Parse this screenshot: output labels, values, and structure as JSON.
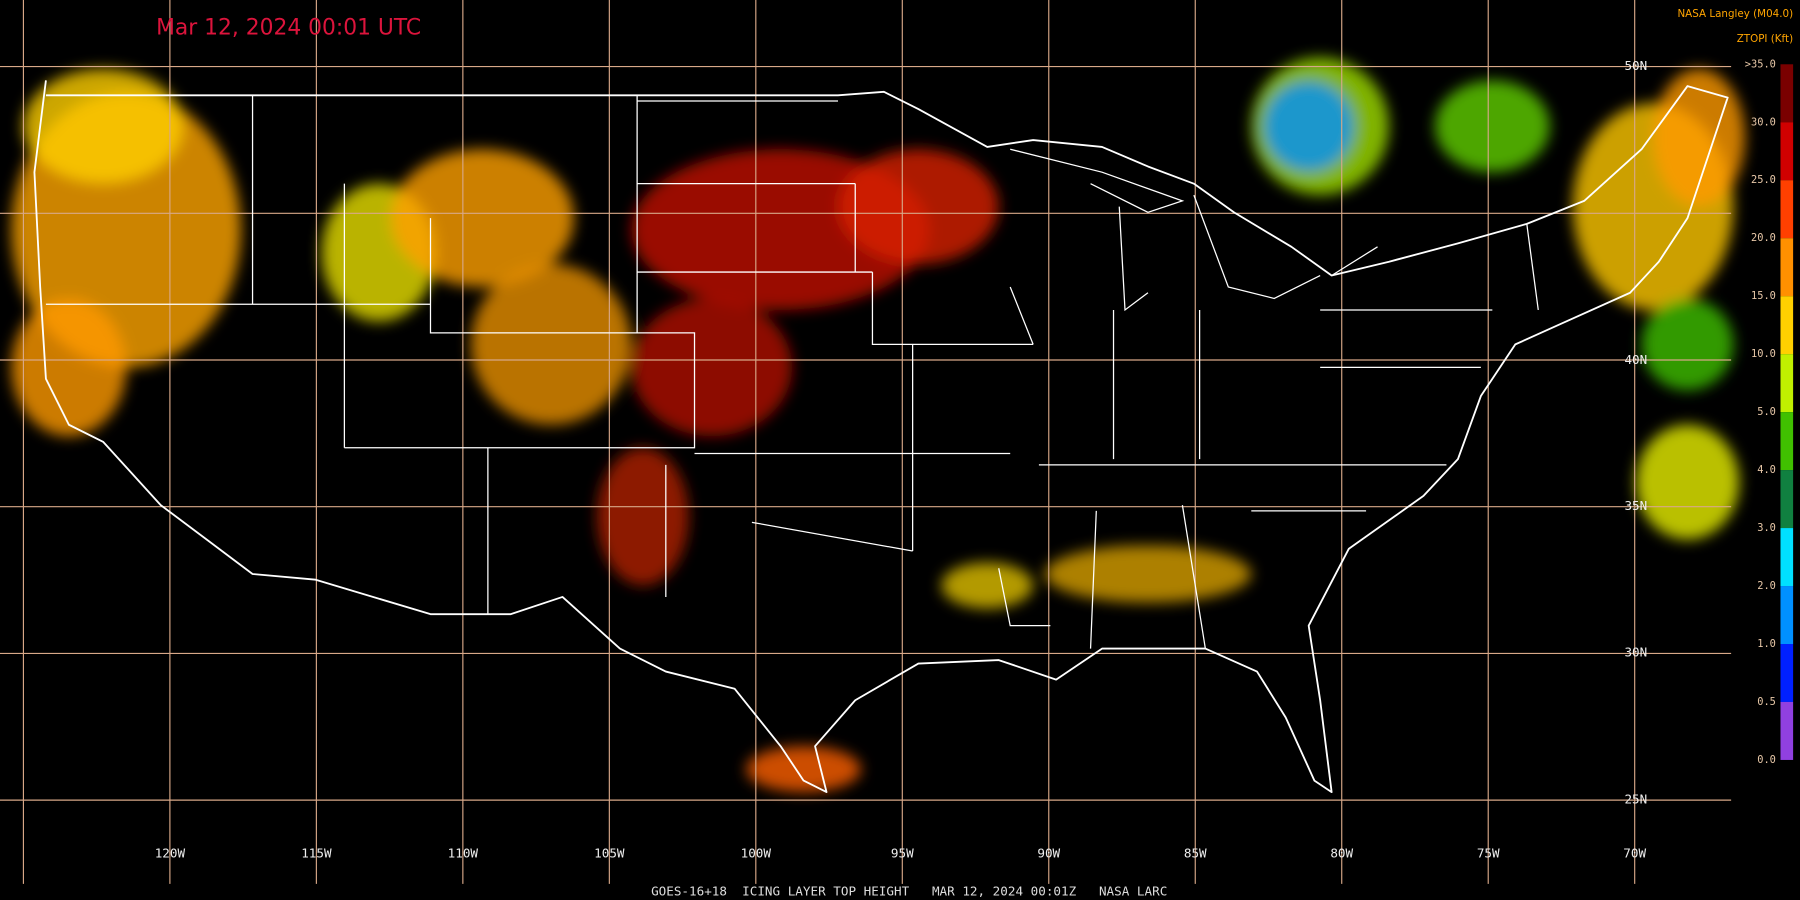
{
  "header": {
    "timestamp": "Mar 12, 2024 00:01 UTC",
    "source": "NASA Langley (M04.0)",
    "caption": "GOES-16+18  ICING LAYER TOP HEIGHT   MAR 12, 2024 00:01Z   NASA LARC"
  },
  "legend": {
    "title": "ZTOPI (Kft)",
    "labels": [
      ">35.0",
      "30.0",
      "25.0",
      "20.0",
      "15.0",
      "10.0",
      "5.0",
      "4.0",
      "3.0",
      "2.0",
      "1.0",
      "0.5",
      "0.0"
    ],
    "colors": [
      "#7a0000",
      "#d00000",
      "#ff4000",
      "#ff9000",
      "#ffd000",
      "#c0f000",
      "#40c000",
      "#108040",
      "#00e0ff",
      "#0090ff",
      "#0020ff",
      "#9040e0"
    ]
  },
  "graticule": {
    "longitudes": [
      "120W",
      "115W",
      "110W",
      "105W",
      "100W",
      "95W",
      "90W",
      "85W",
      "80W",
      "75W",
      "70W"
    ],
    "latitudes": [
      "50N",
      "40N",
      "35N",
      "30N",
      "25N"
    ]
  }
}
